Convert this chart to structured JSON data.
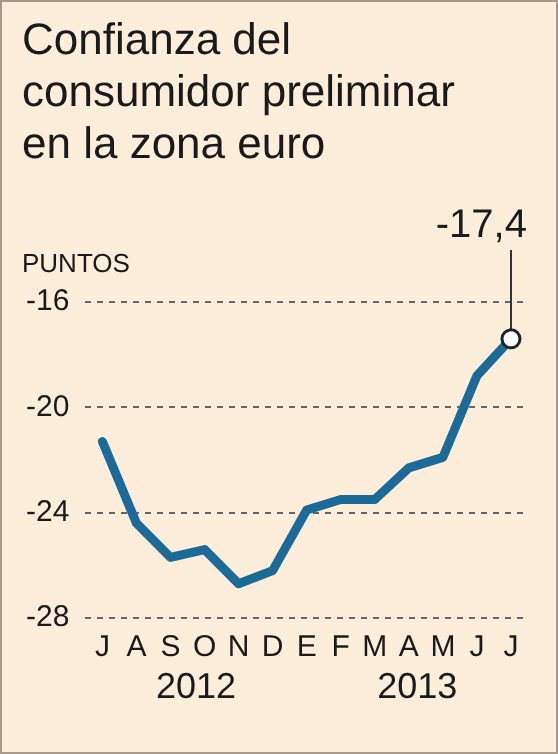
{
  "chart_data": {
    "type": "line",
    "title": "Confianza del consumidor preliminar en la zona euro",
    "ylabel": "PUNTOS",
    "categories": [
      "J",
      "A",
      "S",
      "O",
      "N",
      "D",
      "E",
      "F",
      "M",
      "A",
      "M",
      "J",
      "J"
    ],
    "series": [
      {
        "color": "#1b6a97",
        "values": [
          -21.3,
          -24.4,
          -25.7,
          -25.4,
          -26.7,
          -26.2,
          -23.9,
          -23.5,
          -23.5,
          -22.3,
          -21.9,
          -18.8,
          -17.4
        ],
        "value_labels": [
          null,
          null,
          null,
          null,
          null,
          null,
          null,
          null,
          null,
          null,
          null,
          null,
          "-17,4"
        ]
      }
    ],
    "annotations": [
      "2012",
      "2013"
    ],
    "ylim": [
      -28,
      -16
    ],
    "yticks": [
      -16,
      -20,
      -24,
      -28
    ],
    "grid": "y",
    "marker": "none",
    "line_style": "solid",
    "legend": false
  }
}
